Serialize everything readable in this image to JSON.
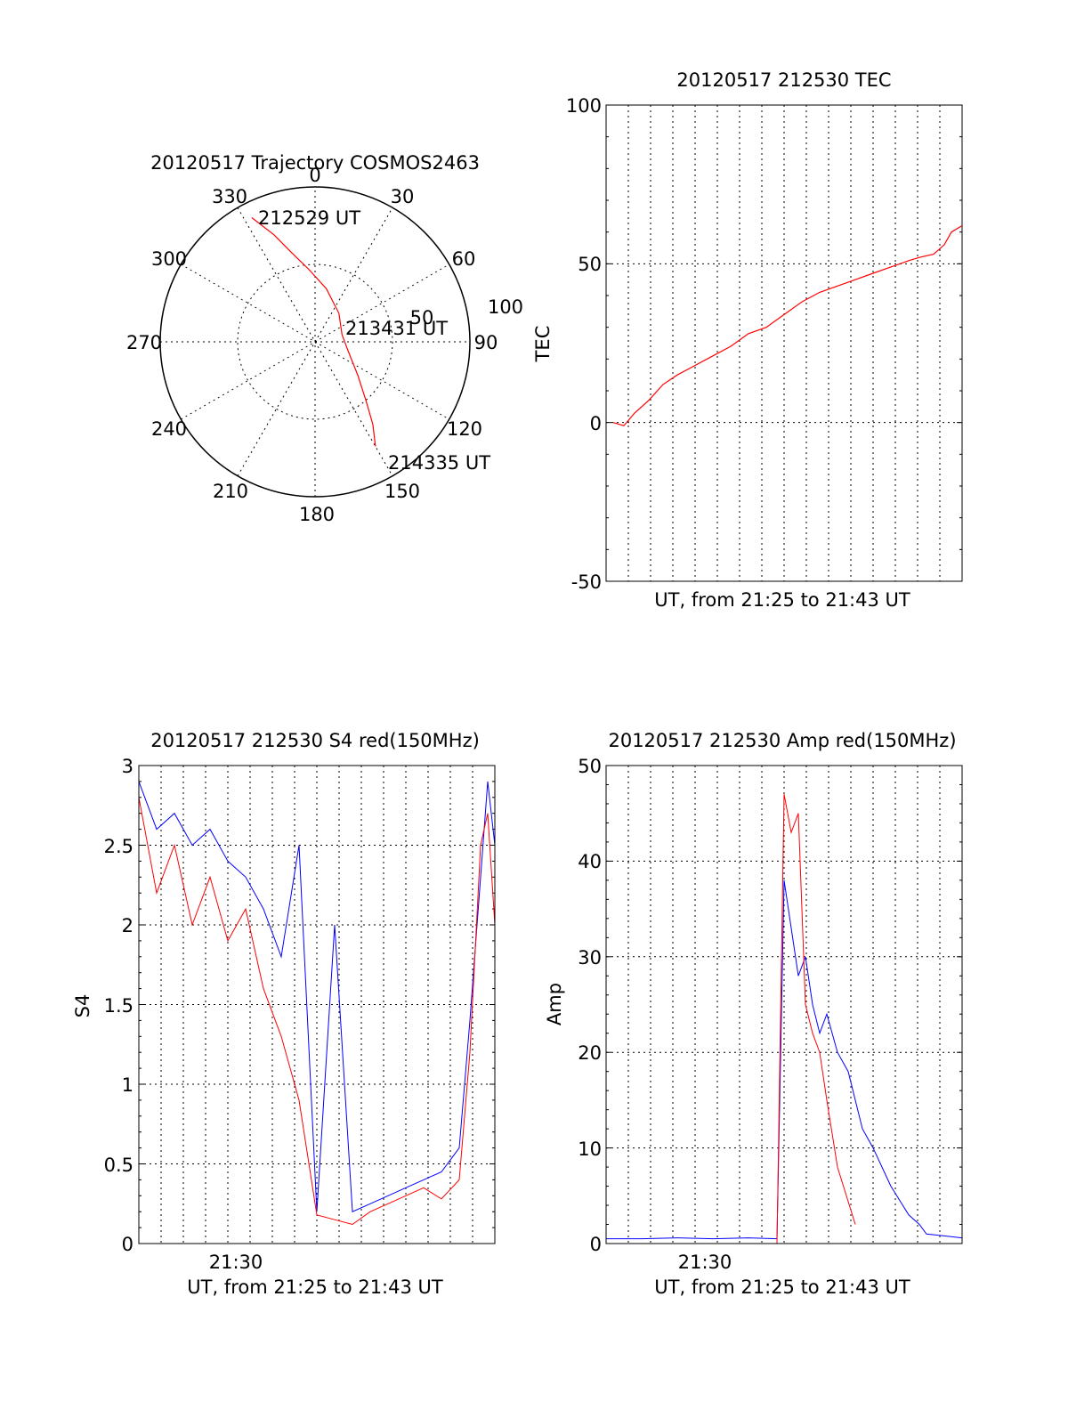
{
  "chart_data": [
    {
      "type": "polar",
      "title": "20120517 Trajectory COSMOS2463",
      "angle_labels": [
        "0",
        "30",
        "60",
        "90",
        "120",
        "150",
        "180",
        "210",
        "240",
        "270",
        "300",
        "330"
      ],
      "radial_labels": [
        "50",
        "100"
      ],
      "radial_values": [
        50,
        100
      ],
      "annotations": [
        "212529 UT",
        "213431 UT",
        "214335 UT"
      ],
      "series": [
        {
          "color": "#ff0000",
          "points": [
            {
              "az": 333,
              "r": 90
            },
            {
              "az": 339,
              "r": 74
            },
            {
              "az": 345,
              "r": 60
            },
            {
              "az": 355,
              "r": 47
            },
            {
              "az": 12,
              "r": 35
            },
            {
              "az": 40,
              "r": 24
            },
            {
              "az": 75,
              "r": 18
            },
            {
              "az": 105,
              "r": 22
            },
            {
              "az": 128,
              "r": 35
            },
            {
              "az": 139,
              "r": 50
            },
            {
              "az": 145,
              "r": 65
            },
            {
              "az": 150,
              "r": 78
            }
          ]
        }
      ],
      "grid": true
    },
    {
      "type": "line",
      "title": "20120517 212530 TEC",
      "xlabel": "UT, from 21:25 to 21:43 UT",
      "ylabel": "TEC",
      "ylim": [
        -50,
        100
      ],
      "yticks": [
        "-50",
        "0",
        "50",
        "100"
      ],
      "ytick_values": [
        -50,
        0,
        50,
        100
      ],
      "xlim": [
        0,
        1
      ],
      "grid": true,
      "series": [
        {
          "color": "#ff0000",
          "x": [
            0.02,
            0.05,
            0.08,
            0.12,
            0.16,
            0.2,
            0.25,
            0.3,
            0.35,
            0.4,
            0.45,
            0.5,
            0.55,
            0.6,
            0.65,
            0.7,
            0.75,
            0.8,
            0.85,
            0.88,
            0.92,
            0.95,
            0.97,
            1.0
          ],
          "y": [
            0,
            -1,
            3,
            7,
            12,
            15,
            18,
            21,
            24,
            28,
            30,
            34,
            38,
            41,
            43,
            45,
            47,
            49,
            51,
            52,
            53,
            56,
            60,
            62
          ]
        }
      ]
    },
    {
      "type": "line",
      "title": "20120517 212530 S4 red(150MHz)",
      "xlabel": "UT, from 21:25 to 21:43 UT",
      "ylabel": "S4",
      "ylim": [
        0,
        3
      ],
      "yticks": [
        "0",
        "0.5",
        "1",
        "1.5",
        "2",
        "2.5",
        "3"
      ],
      "ytick_values": [
        0,
        0.5,
        1,
        1.5,
        2,
        2.5,
        3
      ],
      "xticks": [
        "21:30"
      ],
      "xtick_values": [
        0.27
      ],
      "xlim": [
        0,
        1
      ],
      "grid": true,
      "series": [
        {
          "color": "#0000ff",
          "x": [
            0.0,
            0.05,
            0.1,
            0.15,
            0.2,
            0.25,
            0.3,
            0.35,
            0.4,
            0.45,
            0.5,
            0.55,
            0.6,
            0.65,
            0.7,
            0.75,
            0.8,
            0.85,
            0.9,
            0.93,
            0.96,
            0.98,
            1.0
          ],
          "y": [
            2.9,
            2.6,
            2.7,
            2.5,
            2.6,
            2.4,
            2.3,
            2.1,
            1.8,
            2.5,
            0.2,
            2.0,
            0.2,
            0.25,
            0.3,
            0.35,
            0.4,
            0.45,
            0.6,
            1.4,
            2.3,
            2.9,
            2.5
          ]
        },
        {
          "color": "#ff0000",
          "x": [
            0.0,
            0.05,
            0.1,
            0.15,
            0.2,
            0.25,
            0.3,
            0.35,
            0.4,
            0.45,
            0.5,
            0.55,
            0.6,
            0.65,
            0.7,
            0.75,
            0.8,
            0.85,
            0.9,
            0.93,
            0.96,
            0.98,
            1.0
          ],
          "y": [
            2.8,
            2.2,
            2.5,
            2.0,
            2.3,
            1.9,
            2.1,
            1.6,
            1.3,
            0.9,
            0.18,
            0.15,
            0.12,
            0.2,
            0.25,
            0.3,
            0.35,
            0.28,
            0.4,
            1.2,
            2.5,
            2.7,
            2.0
          ]
        }
      ]
    },
    {
      "type": "line",
      "title": "20120517 212530 Amp red(150MHz)",
      "xlabel": "UT, from 21:25 to 21:43 UT",
      "ylabel": "Amp",
      "ylim": [
        0,
        50
      ],
      "yticks": [
        "0",
        "10",
        "20",
        "30",
        "40",
        "50"
      ],
      "ytick_values": [
        0,
        10,
        20,
        30,
        40,
        50
      ],
      "xticks": [
        "21:30"
      ],
      "xtick_values": [
        0.27
      ],
      "xlim": [
        0,
        1
      ],
      "grid": true,
      "series": [
        {
          "color": "#0000ff",
          "x": [
            0.0,
            0.1,
            0.2,
            0.3,
            0.4,
            0.48,
            0.5,
            0.52,
            0.54,
            0.56,
            0.58,
            0.6,
            0.62,
            0.65,
            0.68,
            0.7,
            0.72,
            0.75,
            0.8,
            0.85,
            0.88,
            0.9,
            0.95,
            1.0
          ],
          "y": [
            0.5,
            0.5,
            0.6,
            0.5,
            0.6,
            0.5,
            38,
            33,
            28,
            30,
            25,
            22,
            24,
            20,
            18,
            15,
            12,
            10,
            6,
            3,
            2,
            1,
            0.8,
            0.6
          ]
        },
        {
          "color": "#ff0000",
          "x": [
            0.48,
            0.5,
            0.52,
            0.54,
            0.56,
            0.58,
            0.6,
            0.62,
            0.65,
            0.7
          ],
          "y": [
            0,
            47,
            43,
            45,
            25,
            22,
            20,
            15,
            8,
            2
          ]
        }
      ]
    }
  ]
}
